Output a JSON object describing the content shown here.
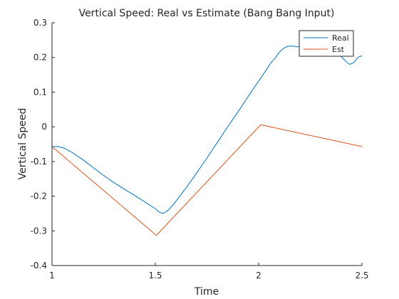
{
  "chart_data": {
    "type": "line",
    "title": "Vertical Speed: Real vs Estimate (Bang Bang Input)",
    "xlabel": "Time",
    "ylabel": "Vertical Speed",
    "xlim": [
      1,
      2.5
    ],
    "ylim": [
      -0.4,
      0.3
    ],
    "xticks": [
      1,
      1.5,
      2,
      2.5
    ],
    "xtick_labels": [
      "1",
      "1.5",
      "2",
      "2.5"
    ],
    "yticks": [
      -0.4,
      -0.3,
      -0.2,
      -0.1,
      0,
      0.1,
      0.2,
      0.3
    ],
    "ytick_labels": [
      "-0.4",
      "-0.3",
      "-0.2",
      "-0.1",
      "0",
      "0.1",
      "0.2",
      "0.3"
    ],
    "grid": false,
    "legend": "top-right",
    "series": [
      {
        "name": "Real",
        "color": "#0072BD",
        "x": [
          1.0,
          1.03,
          1.06,
          1.1,
          1.15,
          1.2,
          1.25,
          1.3,
          1.35,
          1.4,
          1.45,
          1.5,
          1.52,
          1.535,
          1.55,
          1.57,
          1.6,
          1.65,
          1.7,
          1.75,
          1.8,
          1.85,
          1.9,
          1.95,
          2.0,
          2.03,
          2.06,
          2.08,
          2.1,
          2.12,
          2.14,
          2.16,
          2.2,
          2.25,
          2.3,
          2.32,
          2.34,
          2.36,
          2.38,
          2.4,
          2.42,
          2.44,
          2.46,
          2.48,
          2.5
        ],
        "y": [
          -0.057,
          -0.057,
          -0.062,
          -0.075,
          -0.095,
          -0.118,
          -0.14,
          -0.161,
          -0.18,
          -0.198,
          -0.217,
          -0.236,
          -0.246,
          -0.25,
          -0.246,
          -0.236,
          -0.214,
          -0.175,
          -0.133,
          -0.09,
          -0.045,
          0.0,
          0.043,
          0.088,
          0.132,
          0.158,
          0.185,
          0.198,
          0.215,
          0.226,
          0.232,
          0.233,
          0.23,
          0.226,
          0.22,
          0.218,
          0.217,
          0.215,
          0.211,
          0.203,
          0.19,
          0.18,
          0.185,
          0.2,
          0.205
        ]
      },
      {
        "name": "Est",
        "color": "#D95319",
        "x": [
          1.0,
          1.505,
          2.01,
          2.5
        ],
        "y": [
          -0.057,
          -0.313,
          0.006,
          -0.057
        ]
      }
    ]
  }
}
